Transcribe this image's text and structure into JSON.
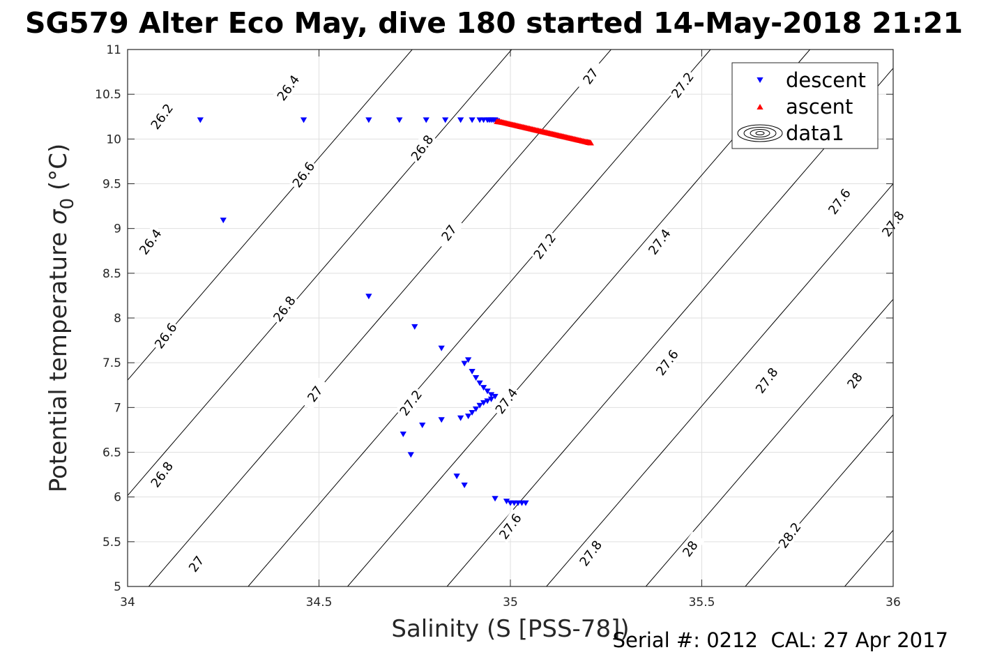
{
  "chart_data": {
    "type": "scatter",
    "title": "SG579 Alter Eco May, dive 180 started 14-May-2018 21:21",
    "xlabel": "Salinity (S [PSS-78])",
    "ylabel_main": "Potential temperature ",
    "ylabel_sigma": "σ",
    "ylabel_sub": "0",
    "ylabel_unit": " (°C)",
    "xlim": [
      34,
      36
    ],
    "ylim": [
      5,
      11
    ],
    "xticks": [
      34,
      34.5,
      35,
      35.5,
      36
    ],
    "xtick_labels": [
      "34",
      "34.5",
      "35",
      "35.5",
      "36"
    ],
    "yticks": [
      5,
      5.5,
      6,
      6.5,
      7,
      7.5,
      8,
      8.5,
      9,
      9.5,
      10,
      10.5,
      11
    ],
    "ytick_labels": [
      "5",
      "5.5",
      "6",
      "6.5",
      "7",
      "7.5",
      "8",
      "8.5",
      "9",
      "9.5",
      "10",
      "10.5",
      "11"
    ],
    "grid": true,
    "legend": {
      "position": "top-right",
      "entries": [
        {
          "label": "descent",
          "marker": "triangle-down",
          "color": "#0000ff"
        },
        {
          "label": "ascent",
          "marker": "triangle-up",
          "color": "#ff0000"
        },
        {
          "label": "data1",
          "marker": "contour",
          "color": "#000000"
        }
      ]
    },
    "density_contours": {
      "levels": [
        26.2,
        26.4,
        26.6,
        26.8,
        27,
        27.2,
        27.4,
        27.6,
        27.8,
        28,
        28.2
      ],
      "color": "#000000",
      "label_positions": [
        {
          "text": "26.2",
          "x": 34.09,
          "y": 10.25
        },
        {
          "text": "26.4",
          "x": 34.42,
          "y": 10.57
        },
        {
          "text": "26.6",
          "x": 34.46,
          "y": 9.6
        },
        {
          "text": "26.8",
          "x": 34.77,
          "y": 9.9
        },
        {
          "text": "27",
          "x": 35.21,
          "y": 10.7
        },
        {
          "text": "27.2",
          "x": 35.45,
          "y": 10.6
        },
        {
          "text": "26.4",
          "x": 34.06,
          "y": 8.85
        },
        {
          "text": "27",
          "x": 34.84,
          "y": 8.95
        },
        {
          "text": "27.2",
          "x": 35.09,
          "y": 8.8
        },
        {
          "text": "27.4",
          "x": 35.39,
          "y": 8.85
        },
        {
          "text": "27.6",
          "x": 35.86,
          "y": 9.3
        },
        {
          "text": "27.8",
          "x": 36.0,
          "y": 9.05
        },
        {
          "text": "26.6",
          "x": 34.1,
          "y": 7.8
        },
        {
          "text": "26.8",
          "x": 34.41,
          "y": 8.1
        },
        {
          "text": "27",
          "x": 34.49,
          "y": 7.15
        },
        {
          "text": "27.2",
          "x": 34.74,
          "y": 7.05
        },
        {
          "text": "27.4",
          "x": 34.99,
          "y": 7.07
        },
        {
          "text": "27.6",
          "x": 35.41,
          "y": 7.5
        },
        {
          "text": "27.8",
          "x": 35.67,
          "y": 7.3
        },
        {
          "text": "28",
          "x": 35.9,
          "y": 7.3
        },
        {
          "text": "26.8",
          "x": 34.09,
          "y": 6.25
        },
        {
          "text": "27",
          "x": 34.18,
          "y": 5.25
        },
        {
          "text": "27.6",
          "x": 35.0,
          "y": 5.67
        },
        {
          "text": "27.8",
          "x": 35.21,
          "y": 5.37
        },
        {
          "text": "28",
          "x": 35.47,
          "y": 5.42
        },
        {
          "text": "28.2",
          "x": 35.73,
          "y": 5.57
        }
      ]
    },
    "series": [
      {
        "name": "descent",
        "marker": "triangle-down",
        "color": "#0000ff",
        "x": [
          34.19,
          34.46,
          34.63,
          34.71,
          34.78,
          34.83,
          34.87,
          34.9,
          34.92,
          34.93,
          34.94,
          34.945,
          34.95,
          34.955,
          34.96,
          34.965,
          34.25,
          34.63,
          34.75,
          34.82,
          34.89,
          34.88,
          34.9,
          34.91,
          34.92,
          34.93,
          34.94,
          34.95,
          34.96,
          34.95,
          34.94,
          34.93,
          34.92,
          34.91,
          34.9,
          34.89,
          34.87,
          34.82,
          34.77,
          34.72,
          34.74,
          34.86,
          34.88,
          34.96,
          34.99,
          35.0,
          35.01,
          35.02,
          35.03,
          35.04
        ],
        "y": [
          10.21,
          10.21,
          10.21,
          10.21,
          10.21,
          10.21,
          10.21,
          10.21,
          10.21,
          10.21,
          10.21,
          10.21,
          10.21,
          10.21,
          10.21,
          10.2,
          9.09,
          8.24,
          7.9,
          7.66,
          7.53,
          7.49,
          7.4,
          7.33,
          7.27,
          7.22,
          7.18,
          7.14,
          7.12,
          7.09,
          7.07,
          7.05,
          7.02,
          6.98,
          6.94,
          6.9,
          6.88,
          6.86,
          6.8,
          6.7,
          6.47,
          6.23,
          6.13,
          5.98,
          5.95,
          5.93,
          5.93,
          5.93,
          5.93,
          5.93
        ]
      },
      {
        "name": "ascent",
        "marker": "triangle-up",
        "color": "#ff0000",
        "x": [
          34.965,
          34.98,
          35.0,
          35.02,
          35.04,
          35.06,
          35.08,
          35.1,
          35.12,
          35.14,
          35.16,
          35.18,
          35.2,
          35.21
        ],
        "y": [
          10.2,
          10.19,
          10.17,
          10.15,
          10.13,
          10.11,
          10.09,
          10.07,
          10.05,
          10.03,
          10.01,
          9.99,
          9.97,
          9.96
        ]
      }
    ]
  },
  "footer": {
    "serial_label": "Serial #: 0212",
    "cal_label": "CAL: 27 Apr 2017"
  }
}
